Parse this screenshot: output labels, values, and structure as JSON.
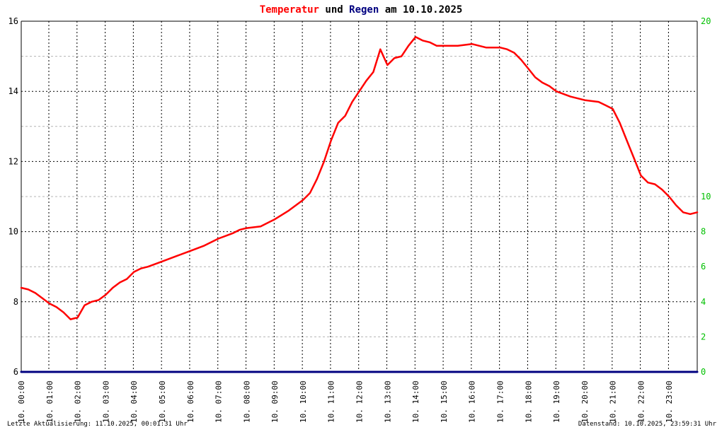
{
  "chart_data": {
    "type": "line",
    "title": {
      "part1": "Temperatur",
      "part2": " und ",
      "part3": "Regen",
      "part4": " am 10.10.2025"
    },
    "colors": {
      "temperature": "#ff0000",
      "rain": "#000080",
      "right_axis_ticks": "#00c000",
      "grid_major": "#000000",
      "grid_minor": "#b4b4b4"
    },
    "grid": true,
    "y_left": {
      "range": [
        6,
        16
      ],
      "ticks": [
        "6",
        "8",
        "10",
        "12",
        "14",
        "16"
      ]
    },
    "y_right": {
      "range": [
        0,
        20
      ],
      "ticks": [
        "0",
        "2",
        "4",
        "6",
        "8",
        "10",
        "20"
      ]
    },
    "x_labels": [
      "10. 00:00",
      "10. 01:00",
      "10. 02:00",
      "10. 03:00",
      "10. 04:00",
      "10. 05:00",
      "10. 06:00",
      "10. 07:00",
      "10. 08:00",
      "10. 09:00",
      "10. 10:00",
      "10. 11:00",
      "10. 12:00",
      "10. 13:00",
      "10. 14:00",
      "10. 15:00",
      "10. 16:00",
      "10. 17:00",
      "10. 18:00",
      "10. 19:00",
      "10. 20:00",
      "10. 21:00",
      "10. 22:00",
      "10. 23:00"
    ],
    "series": [
      {
        "name": "Temperatur",
        "axis": "left",
        "points": [
          [
            0,
            8.4
          ],
          [
            0.25,
            8.35
          ],
          [
            0.5,
            8.25
          ],
          [
            0.75,
            8.1
          ],
          [
            1,
            7.95
          ],
          [
            1.25,
            7.85
          ],
          [
            1.5,
            7.7
          ],
          [
            1.75,
            7.5
          ],
          [
            2,
            7.55
          ],
          [
            2.25,
            7.9
          ],
          [
            2.5,
            8.0
          ],
          [
            2.75,
            8.05
          ],
          [
            3,
            8.2
          ],
          [
            3.25,
            8.4
          ],
          [
            3.5,
            8.55
          ],
          [
            3.75,
            8.65
          ],
          [
            4,
            8.85
          ],
          [
            4.25,
            8.95
          ],
          [
            4.5,
            9.0
          ],
          [
            5,
            9.15
          ],
          [
            5.5,
            9.3
          ],
          [
            6,
            9.45
          ],
          [
            6.5,
            9.6
          ],
          [
            7,
            9.8
          ],
          [
            7.5,
            9.95
          ],
          [
            7.75,
            10.05
          ],
          [
            8,
            10.1
          ],
          [
            8.5,
            10.15
          ],
          [
            9,
            10.35
          ],
          [
            9.5,
            10.6
          ],
          [
            10,
            10.9
          ],
          [
            10.25,
            11.1
          ],
          [
            10.5,
            11.5
          ],
          [
            10.75,
            12.0
          ],
          [
            11,
            12.6
          ],
          [
            11.25,
            13.1
          ],
          [
            11.5,
            13.3
          ],
          [
            11.75,
            13.7
          ],
          [
            12,
            14.0
          ],
          [
            12.25,
            14.3
          ],
          [
            12.5,
            14.55
          ],
          [
            12.75,
            15.2
          ],
          [
            13,
            14.75
          ],
          [
            13.25,
            14.95
          ],
          [
            13.5,
            15.0
          ],
          [
            13.75,
            15.3
          ],
          [
            14,
            15.55
          ],
          [
            14.25,
            15.45
          ],
          [
            14.5,
            15.4
          ],
          [
            14.75,
            15.3
          ],
          [
            15,
            15.3
          ],
          [
            15.5,
            15.3
          ],
          [
            16,
            15.35
          ],
          [
            16.5,
            15.25
          ],
          [
            17,
            15.25
          ],
          [
            17.25,
            15.2
          ],
          [
            17.5,
            15.1
          ],
          [
            17.75,
            14.9
          ],
          [
            18,
            14.65
          ],
          [
            18.25,
            14.4
          ],
          [
            18.5,
            14.25
          ],
          [
            18.75,
            14.15
          ],
          [
            19,
            14.0
          ],
          [
            19.5,
            13.85
          ],
          [
            20,
            13.75
          ],
          [
            20.5,
            13.7
          ],
          [
            20.75,
            13.6
          ],
          [
            21,
            13.5
          ],
          [
            21.25,
            13.1
          ],
          [
            21.5,
            12.6
          ],
          [
            21.75,
            12.1
          ],
          [
            22,
            11.6
          ],
          [
            22.25,
            11.4
          ],
          [
            22.5,
            11.35
          ],
          [
            22.75,
            11.2
          ],
          [
            23,
            11.0
          ],
          [
            23.25,
            10.75
          ],
          [
            23.5,
            10.55
          ],
          [
            23.75,
            10.5
          ],
          [
            24,
            10.55
          ]
        ]
      },
      {
        "name": "Regen",
        "axis": "right",
        "points": [
          [
            0,
            0
          ],
          [
            24,
            0
          ]
        ]
      }
    ],
    "footer_left": "Letzte Aktualisierung: 11.10.2025, 00:01:31 Uhr",
    "footer_right": "Datenstand: 10.10.2025, 23:59:31 Uhr"
  }
}
